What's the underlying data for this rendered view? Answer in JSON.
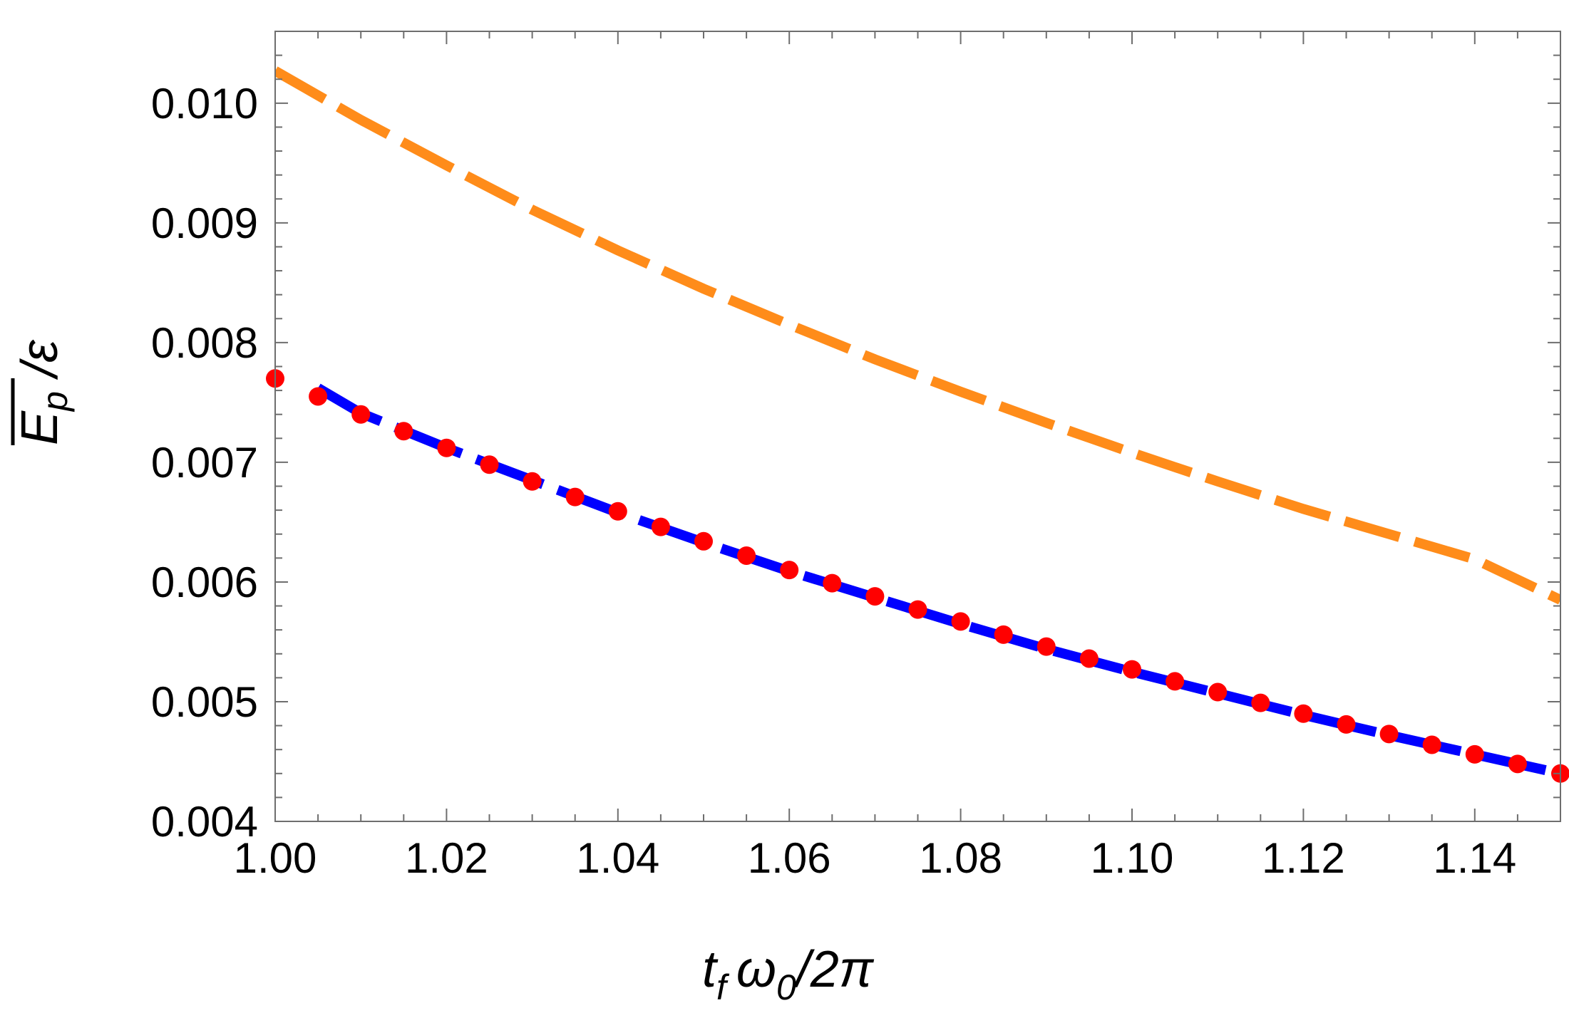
{
  "chart_data": {
    "type": "line",
    "xlabel_parts": {
      "t": "t",
      "t_sub": "f",
      "omega": "ω",
      "omega_sub": "0",
      "rest": "/2π"
    },
    "ylabel_parts": {
      "E": "E",
      "E_sub": "p",
      "rest": " /ε"
    },
    "xlim": [
      1.0,
      1.15
    ],
    "ylim": [
      0.004,
      0.0106
    ],
    "x_ticks": [
      "1.00",
      "1.02",
      "1.04",
      "1.06",
      "1.08",
      "1.10",
      "1.12",
      "1.14"
    ],
    "x_tick_values": [
      1.0,
      1.02,
      1.04,
      1.06,
      1.08,
      1.1,
      1.12,
      1.14
    ],
    "y_ticks": [
      "0.004",
      "0.005",
      "0.006",
      "0.007",
      "0.008",
      "0.009",
      "0.010"
    ],
    "y_tick_values": [
      0.004,
      0.005,
      0.006,
      0.007,
      0.008,
      0.009,
      0.01
    ],
    "grid": false,
    "series": [
      {
        "style": "dashed-line",
        "color": "#ff8c1a",
        "x": [
          1.0,
          1.01,
          1.02,
          1.03,
          1.04,
          1.05,
          1.06,
          1.07,
          1.08,
          1.09,
          1.1,
          1.11,
          1.12,
          1.13,
          1.14,
          1.15
        ],
        "y": [
          0.01027,
          0.00986,
          0.00948,
          0.00911,
          0.00877,
          0.00845,
          0.00815,
          0.00786,
          0.00759,
          0.00733,
          0.00708,
          0.00684,
          0.00661,
          0.0064,
          0.00619,
          0.00585
        ]
      },
      {
        "style": "dashed-line",
        "color": "#0000ff",
        "x": [
          1.005,
          1.01,
          1.02,
          1.03,
          1.04,
          1.05,
          1.06,
          1.07,
          1.08,
          1.09,
          1.1,
          1.11,
          1.12,
          1.13,
          1.14,
          1.15
        ],
        "y": [
          0.00762,
          0.00741,
          0.00712,
          0.00685,
          0.00658,
          0.00633,
          0.00609,
          0.00587,
          0.00565,
          0.00544,
          0.00525,
          0.00507,
          0.00489,
          0.00472,
          0.00456,
          0.0044
        ]
      },
      {
        "style": "markers",
        "color": "#ff0000",
        "x": [
          1.0,
          1.005,
          1.01,
          1.015,
          1.02,
          1.025,
          1.03,
          1.035,
          1.04,
          1.045,
          1.05,
          1.055,
          1.06,
          1.065,
          1.07,
          1.075,
          1.08,
          1.085,
          1.09,
          1.095,
          1.1,
          1.105,
          1.11,
          1.115,
          1.12,
          1.125,
          1.13,
          1.135,
          1.14,
          1.145,
          1.15
        ],
        "y": [
          0.0077,
          0.00755,
          0.0074,
          0.00726,
          0.00712,
          0.00698,
          0.00684,
          0.00671,
          0.00659,
          0.00646,
          0.00634,
          0.00622,
          0.0061,
          0.00599,
          0.00588,
          0.00577,
          0.00567,
          0.00556,
          0.00546,
          0.00536,
          0.00527,
          0.00517,
          0.00508,
          0.00499,
          0.0049,
          0.00481,
          0.00473,
          0.00464,
          0.00456,
          0.00448,
          0.0044
        ]
      }
    ]
  }
}
